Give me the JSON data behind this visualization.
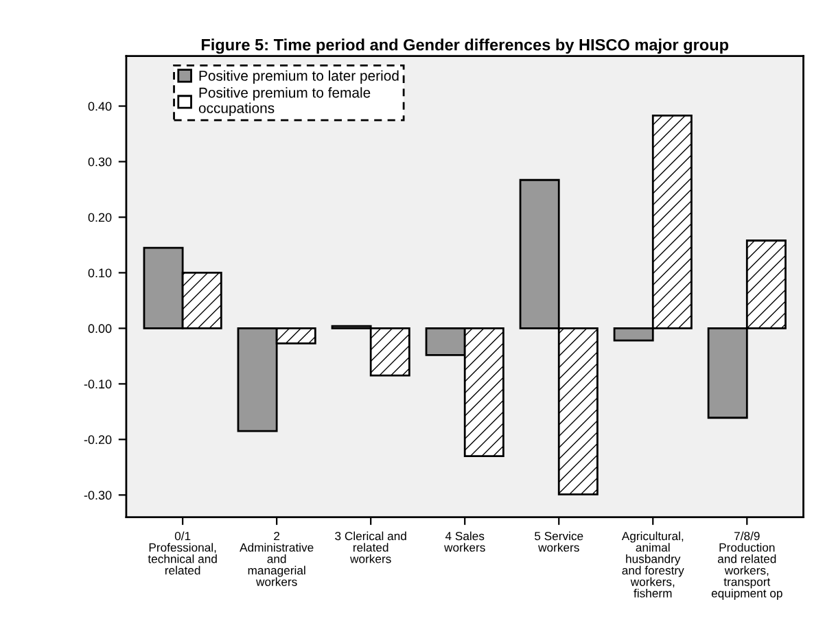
{
  "chart_data": {
    "type": "bar",
    "title": "Figure 5: Time period and Gender differences by HISCO major group",
    "categories": [
      "0/1\nProfessional,\ntechnical and\nrelated",
      "2\nAdministrative\nand\nmanagerial\nworkers",
      "3 Clerical and\nrelated\nworkers",
      "4 Sales\nworkers",
      "5 Service\nworkers",
      "Agricultural,\nanimal\nhusbandry\nand forestry\nworkers,\nfisherm",
      "7/8/9\nProduction\nand related\nworkers,\ntransport\nequipment op"
    ],
    "series": [
      {
        "name": "Positive premium to later period",
        "color": "#999999",
        "values": [
          0.145,
          -0.185,
          0.004,
          -0.048,
          0.267,
          -0.022,
          -0.161
        ]
      },
      {
        "name": "Positive premium to female\noccupations",
        "color": "#ffffff",
        "values": [
          0.1,
          -0.027,
          -0.085,
          -0.23,
          -0.299,
          0.383,
          0.158
        ]
      }
    ],
    "ylim": [
      -0.34,
      0.49
    ],
    "yticks": [
      {
        "value": -0.3,
        "label": "-0.30"
      },
      {
        "value": -0.2,
        "label": "-0.20"
      },
      {
        "value": -0.1,
        "label": "-0.10"
      },
      {
        "value": 0,
        "label": "0.00"
      },
      {
        "value": 0.1,
        "label": "0.10"
      },
      {
        "value": 0.2,
        "label": "0.20"
      },
      {
        "value": 0.3,
        "label": "0.30"
      },
      {
        "value": 0.4,
        "label": "0.40"
      }
    ],
    "grid": false,
    "legend": "top left"
  }
}
